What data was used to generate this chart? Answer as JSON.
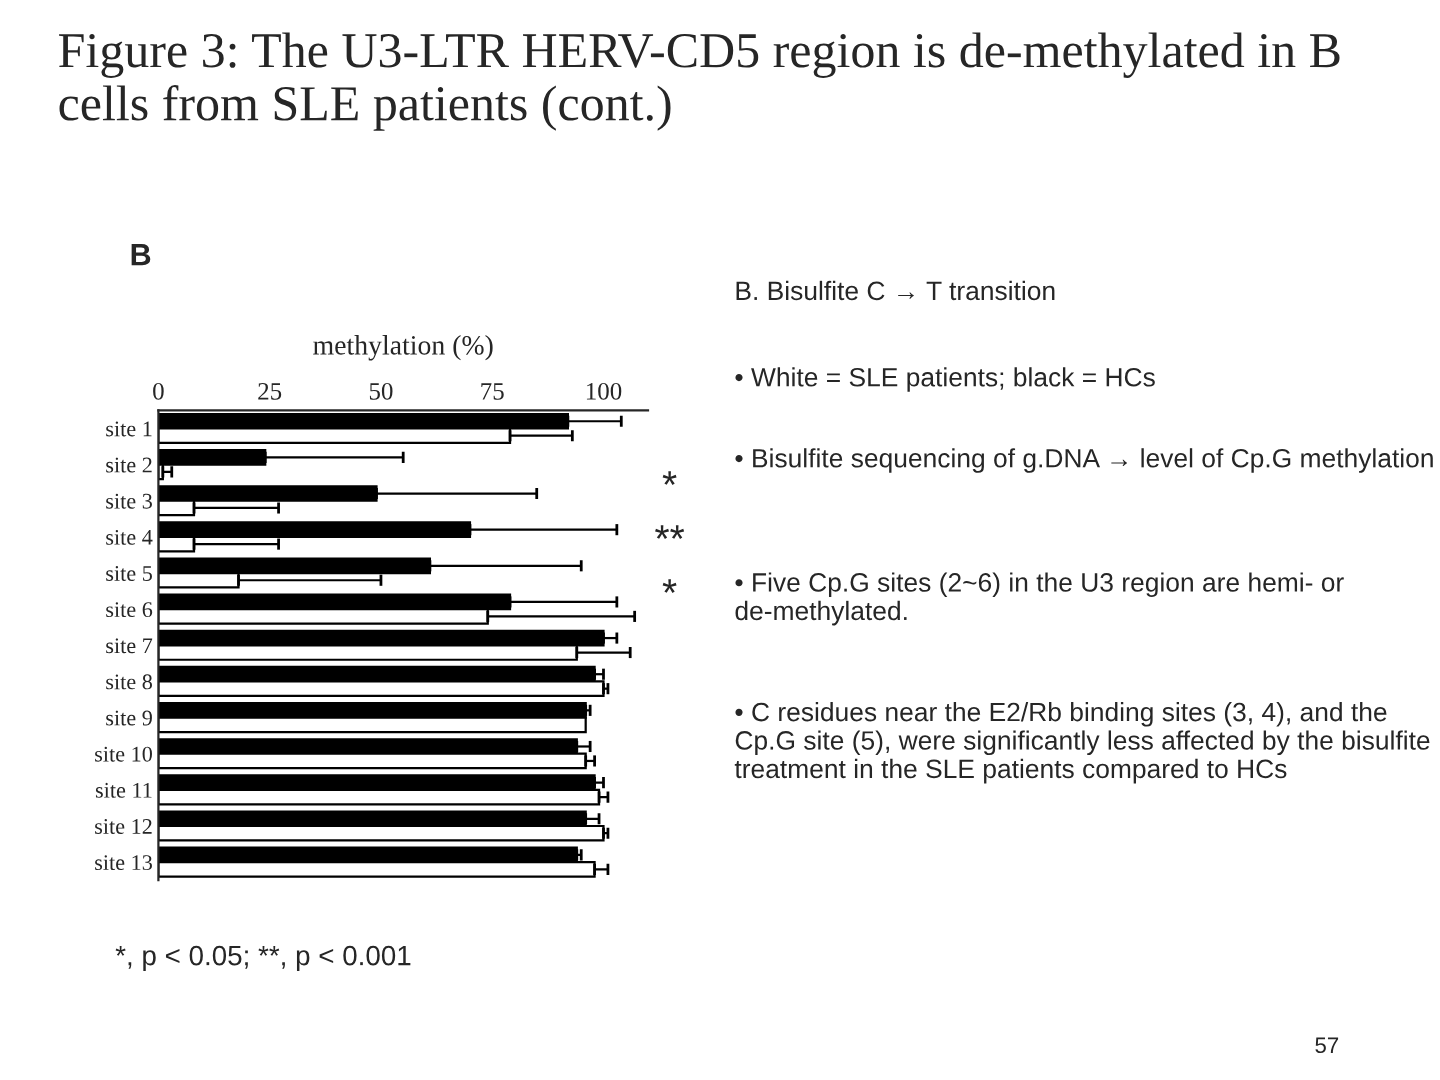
{
  "chart_data": {
    "type": "bar",
    "orientation": "horizontal",
    "title": "Figure 3: The U3-LTR HERV-CD5 region is de-methylated in B cells from SLE patients (cont.)",
    "xlabel": "methylation (%)",
    "categories": [
      "site 1",
      "site 2",
      "site 3",
      "site 4",
      "site 5",
      "site 6",
      "site 7",
      "site 8",
      "site 9",
      "site 10",
      "site 11",
      "site 12",
      "site 13"
    ],
    "series": [
      {
        "color": "#000000",
        "values": [
          92,
          24,
          49,
          70,
          61,
          79,
          100,
          98,
          96,
          94,
          98,
          96,
          94
        ],
        "errors": [
          [
            92,
            104
          ],
          [
            24,
            55
          ],
          [
            49,
            85
          ],
          [
            70,
            103
          ],
          [
            61,
            95
          ],
          [
            79,
            103
          ],
          [
            100,
            103
          ],
          [
            98,
            100
          ],
          [
            96,
            97
          ],
          [
            94,
            97
          ],
          [
            98,
            100
          ],
          [
            96,
            99
          ],
          [
            94,
            95
          ]
        ]
      },
      {
        "color": "#ffffff",
        "values": [
          79,
          1,
          8,
          8,
          18,
          74,
          94,
          100,
          96,
          96,
          99,
          100,
          98
        ],
        "errors": [
          [
            79,
            93
          ],
          [
            1,
            3
          ],
          [
            8,
            27
          ],
          [
            8,
            27
          ],
          [
            18,
            50
          ],
          [
            74,
            107
          ],
          [
            94,
            106
          ],
          [
            100,
            101
          ],
          null,
          [
            96,
            98
          ],
          [
            99,
            101
          ],
          [
            100,
            101
          ],
          [
            98,
            101
          ]
        ]
      }
    ],
    "xlim": [
      0,
      110
    ],
    "xticks": [
      0,
      25,
      50,
      75,
      100
    ],
    "grid": false,
    "legend": false,
    "annotations": [
      "B",
      "*",
      "**",
      "*",
      "*, p < 0.05; **, p < 0.001",
      "B. Bisulfite C → T transition",
      "• White = SLE patients; black = HCs",
      "• Bisulfite sequencing of g.DNA → level of Cp.G methylation",
      "• Five Cp.G sites (2~6) in the U3 region are hemi- or de-methylated.",
      "• C residues near the E2/Rb binding sites (3, 4), and the Cp.G site (5), were significantly less affected by the bisulfite treatment in the SLE patients compared to HCs",
      "57"
    ]
  }
}
